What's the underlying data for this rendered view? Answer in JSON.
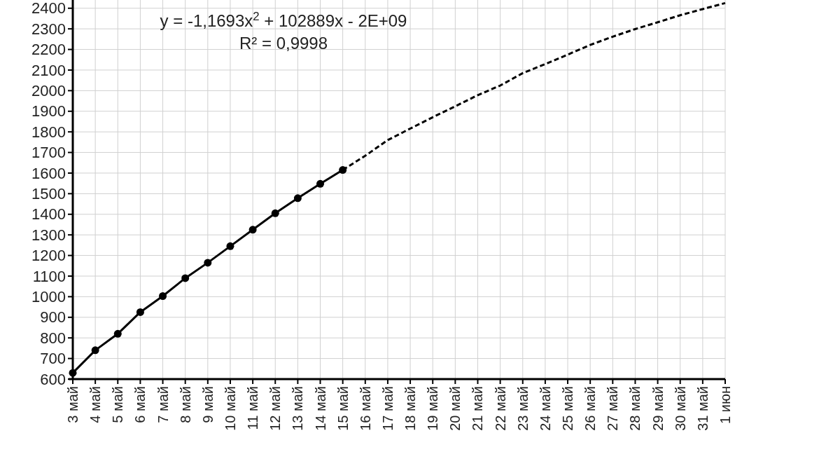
{
  "chart_data": {
    "type": "line",
    "categories": [
      "3 май",
      "4 май",
      "5 май",
      "6 май",
      "7 май",
      "8 май",
      "9 май",
      "10 май",
      "11 май",
      "12 май",
      "13 май",
      "14 май",
      "15 май",
      "16 май",
      "17 май",
      "18 май",
      "19 май",
      "20 май",
      "21 май",
      "22 май",
      "23 май",
      "24 май",
      "25 май",
      "26 май",
      "27 май",
      "28 май",
      "29 май",
      "30 май",
      "31 май",
      "1 июн"
    ],
    "series": [
      {
        "color": "#000000",
        "marker": "circle",
        "line_style": "solid",
        "values": [
          630,
          740,
          820,
          925,
          1003,
          1090,
          1165,
          1245,
          1325,
          1405,
          1478,
          1548,
          1615,
          null,
          null,
          null,
          null,
          null,
          null,
          null,
          null,
          null,
          null,
          null,
          null,
          null,
          null,
          null,
          null,
          null
        ]
      },
      {
        "color": "#000000",
        "marker": "none",
        "line_style": "dashed",
        "values": [
          null,
          null,
          null,
          null,
          null,
          null,
          null,
          null,
          null,
          null,
          null,
          null,
          1615,
          1684,
          1760,
          1816,
          1871,
          1924,
          1978,
          2025,
          2085,
          2129,
          2175,
          2222,
          2262,
          2299,
          2332,
          2366,
          2396,
          2425
        ]
      }
    ],
    "ylim": [
      600,
      2440
    ],
    "yticks": [
      600,
      700,
      800,
      900,
      1000,
      1100,
      1200,
      1300,
      1400,
      1500,
      1600,
      1700,
      1800,
      1900,
      2000,
      2100,
      2200,
      2300,
      2400
    ],
    "grid": true,
    "annotations": [
      "y = -1,1693x$^{2}$ + 102889x - 2E+09",
      "R² = 0,9998"
    ]
  }
}
